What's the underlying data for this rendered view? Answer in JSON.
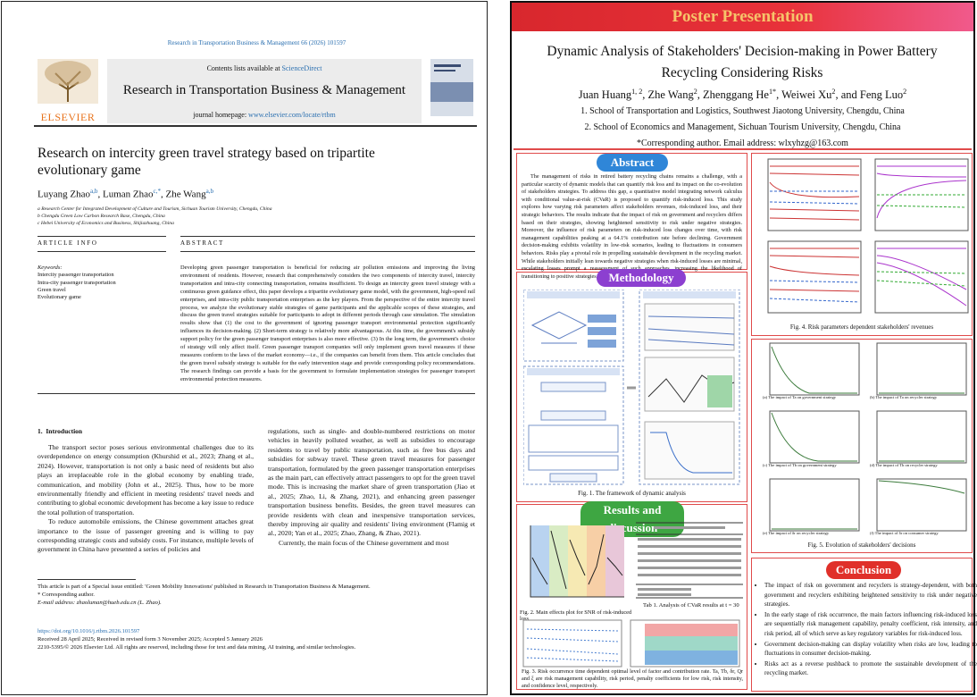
{
  "paper": {
    "journal_ref": "Research in Transportation Business & Management 66 (2026) 101597",
    "contents_prefix": "Contents lists available at ",
    "contents_link": "ScienceDirect",
    "journal_name": "Research in Transportation Business & Management",
    "homepage_prefix": "journal homepage: ",
    "homepage_link": "www.elsevier.com/locate/rtbm",
    "publisher": "ELSEVIER",
    "title": "Research on intercity green travel strategy based on tripartite evolutionary game",
    "authors": [
      {
        "name": "Luyang Zhao",
        "sup": "a,b"
      },
      {
        "name": "Luman Zhao",
        "sup": "c,*"
      },
      {
        "name": "Zhe Wang",
        "sup": "a,b"
      }
    ],
    "affiliations": [
      "a Research Center for Integrated Development of Culture and Tourism, Sichuan Tourism University, Chengdu, China",
      "b Chengdu Green Low Carbon Research Base, Chengdu, China",
      "c Hebei University of Economics and Business, Shijiazhuang, China"
    ],
    "article_info_heading": "A R T I C L E   I N F O",
    "keywords_heading": "Keywords:",
    "keywords": [
      "Intercity passenger transportation",
      "Intra-city passenger transportation",
      "Green travel",
      "Evolutionary game"
    ],
    "abstract_heading": "A B S T R A C T",
    "abstract": "Developing green passenger transportation is beneficial for reducing air pollution emissions and improving the living environment of residents. However, research that comprehensively considers the two components of intercity travel, intercity transportation and intra-city connecting transportation, remains insufficient. To design an intercity green travel strategy with a continuous green guidance effect, this paper develops a tripartite evolutionary game model, with the government, high-speed rail enterprises, and intra-city public transportation enterprises as the key players. From the perspective of the entire intercity travel process, we analyze the evolutionary stable strategies of game participants and the applicable scopes of these strategies, and discuss the green travel strategies suitable for participants to adopt in different periods through case simulation. The simulation results show that (1) the cost to the government of ignoring passenger transport environmental protection significantly influences its decision-making. (2) Short-term strategy is relatively more advantageous. At this time, the government's subsidy support policy for the green passenger transport enterprises is also more effective. (3) In the long term, the government's choice of strategy will only affect itself. Green passenger transport companies will only implement green travel measures if these measures conform to the laws of the market economy—i.e., if the companies can benefit from them. This article concludes that the green travel subsidy strategy is suitable for the early intervention stage and provide corresponding policy recommendations. The research findings can provide a basis for the government to formulate implementation strategies for passenger transport environmental protection measures.",
    "intro_heading": "1.  Introduction",
    "intro_col1": [
      "The transport sector poses serious environmental challenges due to its overdependence on energy consumption (Khurshid et al., 2023; Zhang et al., 2024). However, transportation is not only a basic need of residents but also plays an irreplaceable role in the global economy by enabling trade, communication, and mobility (John et al., 2025). Thus, how to be more environmentally friendly and efficient in meeting residents' travel needs and contributing to global economic development has become a key issue to reduce the total pollution of transportation.",
      "To reduce automobile emissions, the Chinese government attaches great importance to the issue of passenger greening and is willing to pay corresponding strategic costs and subsidy costs. For instance, multiple levels of government in China have presented a series of policies and"
    ],
    "intro_col2": [
      "regulations, such as single- and double-numbered restrictions on motor vehicles in heavily polluted weather, as well as subsidies to encourage residents to travel by public transportation, such as free bus days and subsidies for subway travel. These green travel measures for passenger transportation, formulated by the green passenger transportation enterprises as the main part, can effectively attract passengers to opt for the green travel mode. This is increasing the market share of green transportation (Jiao et al., 2025; Zhao, Li, & Zhang, 2021), and enhancing green passenger transportation business benefits. Besides, the green travel measures can provide residents with clean and inexpensive transportation services, thereby improving air quality and residents' living environment (Flamig et al., 2020; Yan et al., 2025; Zhao, Zhang, & Zhao, 2021).",
      "Currently, the main focus of the Chinese government and most"
    ],
    "footnotes": [
      "This article is part of a Special issue entitled: 'Green Mobility Innovations' published in Research in Transportation Business & Management.",
      "* Corresponding author.",
      "E-mail address: zhaoluman@hueb.edu.cn (L. Zhao)."
    ],
    "doi": "https://doi.org/10.1016/j.rtbm.2026.101597",
    "received": "Received 28 April 2025; Received in revised form 3 November 2025; Accepted 5 January 2026",
    "copyright": "2210-5395/© 2026 Elsevier Ltd. All rights are reserved, including those for text and data mining, AI training, and similar technologies."
  },
  "poster": {
    "banner": "Poster Presentation",
    "title": "Dynamic Analysis of Stakeholders' Decision-making in Power Battery Recycling Considering Risks",
    "authors": [
      {
        "name": "Juan Huang",
        "sup": "1, 2"
      },
      {
        "name": "Zhe Wang",
        "sup": "2"
      },
      {
        "name": "Zhenggang He",
        "sup": "1*"
      },
      {
        "name": "Weiwei Xu",
        "sup": "2"
      },
      {
        "name": "Feng Luo",
        "sup": "2"
      }
    ],
    "affiliations": [
      "1. School of Transportation and Logistics, Southwest Jiaotong University, Chengdu, China",
      "2. School of Economics and Management, Sichuan Tourism University, Chengdu, China"
    ],
    "corresponding": "*Corresponding author. Email address: wlxyhzg@163.com",
    "abstract_heading": "Abstract",
    "abstract": "The management of risks in retired battery recycling chains remains a challenge, with a particular scarcity of dynamic models that can quantify risk loss and its impact on the co-evolution of stakeholders strategies. To address this gap, a quantitative model integrating network calculus with conditional value-at-risk (CVaR) is proposed to quantify risk-induced loss. This study explores how varying risk parameters affect stakeholders revenues, risk-induced loss, and their strategic behaviors. The results indicate that the impact of risk on government and recyclers differs based on their strategies, showing heightened sensitivity to risk under negative strategies. Moreover, the influence of risk parameters on risk-induced loss changes over time, with risk management capabilities peaking at a 64.1% contribution rate before declining. Government decision-making exhibits volatility in low-risk scenarios, leading to fluctuations in consumers behaviors. Risks play a pivotal role in propelling sustainable development in the recycling market. While stakeholders initially lean towards negative strategies when risk-induced losses are minimal, escalating losses prompt a reassessment of such approaches, increasing the likelihood of transitioning to positive strategies.",
    "methodology_heading": "Methodology",
    "fig1_caption": "Fig. 1. The framework of dynamic analysis",
    "results_heading": "Results and discussion",
    "fig2_caption": "Fig. 2. Main effects plot for SNR of risk-induced loss",
    "tab1_caption": "Tab 1. Analysis of CVaR results at t = 30",
    "fig3_caption": "Fig. 3. Risk occurrence time dependent optimal level of factor and contribution rate. Ta, Tb, δr, Qr and ξ are risk management capability, risk period, penalty coefficients for low risk, risk intensity, and confidence level, respectively.",
    "fig4_caption": "Fig. 4. Risk parameters dependent stakeholders' revenues",
    "fig5_subcaptions": [
      "(a) The impact of Ta on government strategy",
      "(b) The impact of Ta on recycler strategy",
      "(c) The impact of Tb on government strategy",
      "(d) The impact of Tb on recycler strategy",
      "(e) The impact of δr on recycler strategy",
      "(f) The impact of δr on consumer strategy"
    ],
    "fig5_caption": "Fig. 5. Evolution of stakeholders' decisions",
    "conclusion_heading": "Conclusion",
    "conclusion": [
      "The impact of risk on government and recyclers is strategy-dependent, with both government and recyclers exhibiting heightened sensitivity to risk under negative strategies.",
      "In the early stage of risk occurrence, the main factors influencing risk-induced loss are sequentially risk management capability, penalty coefficient, risk intensity, and risk period, all of which serve as key regulatory variables for risk-induced loss.",
      "Government decision-making can display volatility when risks are low, leading to fluctuations in consumer decision-making.",
      "Risks act as a reverse pushback to promote the sustainable development of the recycling market."
    ]
  }
}
